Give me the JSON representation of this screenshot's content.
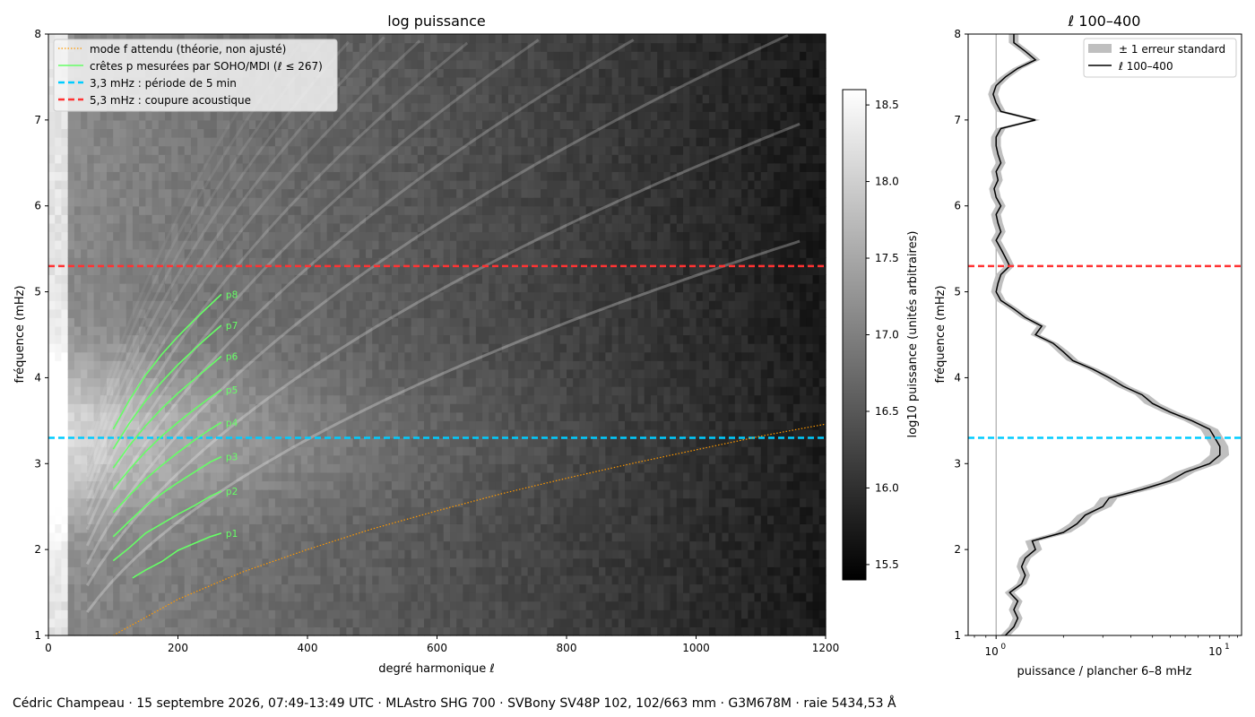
{
  "credit": "Cédric Champeau · 15 septembre 2026, 07:49-13:49 UTC · MLAstro SHG 700 · SVBony SV48P 102, 102/663 mm · G3M678M · raie 5434,53 Å",
  "colors": {
    "f_mode": "#ff9900",
    "p_ridges": "#66ff66",
    "line_5min": "#00ccff",
    "line_cutoff": "#ff3333",
    "band": "#bfbfbf",
    "profile": "#000000"
  },
  "chart_data": [
    {
      "type": "heatmap",
      "title": "log puissance",
      "xlabel": "degré harmonique ℓ",
      "ylabel": "fréquence (mHz)",
      "xlim": [
        0,
        1200
      ],
      "ylim": [
        1,
        8
      ],
      "xticks": [
        0,
        200,
        400,
        600,
        800,
        1000,
        1200
      ],
      "yticks": [
        1,
        2,
        3,
        4,
        5,
        6,
        7,
        8
      ],
      "colormap": "gray",
      "colorbar": {
        "label": "log10 puissance (unités arbitraires)",
        "range": [
          15.4,
          18.6
        ],
        "ticks": [
          15.5,
          16.0,
          16.5,
          17.0,
          17.5,
          18.0,
          18.5
        ]
      },
      "legend_position": "top-left",
      "legend": [
        "mode f attendu (théorie, non ajusté)",
        "crêtes p mesurées par SOHO/MDI (ℓ ≤ 267)",
        "3,3 mHz : période de 5 min",
        "5,3 mHz : coupure acoustique"
      ],
      "hlines": [
        {
          "y": 3.3,
          "key": "line_5min"
        },
        {
          "y": 5.3,
          "key": "line_cutoff"
        }
      ],
      "f_mode": {
        "x": [
          100,
          200,
          300,
          400,
          500,
          600,
          700,
          800,
          900,
          1000,
          1100,
          1200
        ],
        "y": [
          1.0,
          1.42,
          1.74,
          2.0,
          2.24,
          2.45,
          2.65,
          2.83,
          3.0,
          3.16,
          3.32,
          3.46
        ]
      },
      "p_ridges": [
        {
          "name": "p1",
          "x": [
            130,
            150,
            175,
            200,
            225,
            250,
            267
          ],
          "y": [
            1.67,
            1.76,
            1.86,
            1.99,
            2.07,
            2.15,
            2.19
          ]
        },
        {
          "name": "p2",
          "x": [
            100,
            125,
            150,
            175,
            200,
            225,
            250,
            267
          ],
          "y": [
            1.87,
            2.02,
            2.19,
            2.3,
            2.41,
            2.51,
            2.62,
            2.68
          ]
        },
        {
          "name": "p3",
          "x": [
            100,
            125,
            150,
            175,
            200,
            225,
            250,
            267
          ],
          "y": [
            2.15,
            2.33,
            2.51,
            2.65,
            2.78,
            2.9,
            3.02,
            3.08
          ]
        },
        {
          "name": "p4",
          "x": [
            100,
            125,
            150,
            175,
            200,
            225,
            250,
            267
          ],
          "y": [
            2.43,
            2.63,
            2.82,
            2.98,
            3.13,
            3.27,
            3.4,
            3.48
          ]
        },
        {
          "name": "p5",
          "x": [
            100,
            125,
            150,
            175,
            200,
            225,
            250,
            267
          ],
          "y": [
            2.7,
            2.93,
            3.14,
            3.32,
            3.48,
            3.63,
            3.77,
            3.86
          ]
        },
        {
          "name": "p6",
          "x": [
            100,
            125,
            150,
            175,
            200,
            225,
            250,
            267
          ],
          "y": [
            2.95,
            3.21,
            3.44,
            3.64,
            3.82,
            3.98,
            4.14,
            4.25
          ]
        },
        {
          "name": "p7",
          "x": [
            100,
            125,
            150,
            175,
            200,
            225,
            250,
            267
          ],
          "y": [
            3.17,
            3.47,
            3.73,
            3.95,
            4.15,
            4.33,
            4.5,
            4.61
          ]
        },
        {
          "name": "p8",
          "x": [
            100,
            125,
            150,
            175,
            200,
            225,
            250,
            267
          ],
          "y": [
            3.4,
            3.74,
            4.03,
            4.27,
            4.48,
            4.67,
            4.85,
            4.97
          ]
        }
      ]
    },
    {
      "type": "line",
      "title": "ℓ 100–400",
      "xlabel": "puissance / plancher 6–8 mHz",
      "ylabel": "fréquence (mHz)",
      "xscale": "log",
      "xlim": [
        0.75,
        12.5
      ],
      "ylim": [
        1,
        8
      ],
      "xticks": [
        {
          "value": 1,
          "base": "10",
          "exp": "0"
        },
        {
          "value": 10,
          "base": "10",
          "exp": "1"
        }
      ],
      "yticks": [
        1,
        2,
        3,
        4,
        5,
        6,
        7,
        8
      ],
      "vline": 1,
      "legend_position": "top-right",
      "legend": [
        "± 1 erreur standard",
        "ℓ 100–400"
      ],
      "hlines": [
        {
          "y": 3.3,
          "key": "line_5min"
        },
        {
          "y": 5.3,
          "key": "line_cutoff"
        }
      ],
      "series": [
        {
          "name": "ℓ 100–400",
          "y": [
            1.0,
            1.1,
            1.2,
            1.3,
            1.4,
            1.5,
            1.6,
            1.7,
            1.8,
            1.9,
            2.0,
            2.1,
            2.2,
            2.3,
            2.4,
            2.5,
            2.6,
            2.7,
            2.8,
            2.9,
            3.0,
            3.1,
            3.2,
            3.3,
            3.4,
            3.5,
            3.6,
            3.7,
            3.8,
            3.9,
            4.0,
            4.1,
            4.2,
            4.3,
            4.4,
            4.5,
            4.6,
            4.7,
            4.8,
            4.9,
            5.0,
            5.1,
            5.2,
            5.3,
            5.4,
            5.5,
            5.6,
            5.7,
            5.8,
            5.9,
            6.0,
            6.1,
            6.2,
            6.3,
            6.4,
            6.5,
            6.6,
            6.7,
            6.8,
            6.9,
            7.0,
            7.1,
            7.2,
            7.3,
            7.4,
            7.5,
            7.6,
            7.7,
            7.8,
            7.9,
            8.0
          ],
          "x": [
            1.1,
            1.2,
            1.25,
            1.2,
            1.25,
            1.15,
            1.3,
            1.35,
            1.3,
            1.35,
            1.5,
            1.45,
            2.0,
            2.3,
            2.5,
            3.0,
            3.2,
            4.5,
            6.0,
            7.0,
            9.0,
            10.0,
            10.0,
            9.5,
            9.0,
            7.5,
            6.0,
            5.0,
            4.5,
            3.7,
            3.2,
            2.7,
            2.2,
            2.0,
            1.8,
            1.5,
            1.6,
            1.35,
            1.2,
            1.05,
            1.0,
            1.02,
            1.05,
            1.15,
            1.1,
            1.05,
            1.0,
            1.05,
            1.02,
            1.0,
            1.05,
            1.0,
            0.98,
            1.02,
            1.0,
            1.05,
            1.02,
            1.0,
            1.0,
            1.05,
            1.5,
            1.05,
            1.0,
            0.97,
            1.0,
            1.1,
            1.25,
            1.5,
            1.35,
            1.2,
            1.2
          ],
          "err": [
            0.05,
            0.05,
            0.05,
            0.05,
            0.05,
            0.05,
            0.05,
            0.05,
            0.05,
            0.06,
            0.07,
            0.07,
            0.08,
            0.08,
            0.08,
            0.09,
            0.09,
            0.1,
            0.1,
            0.1,
            0.1,
            0.1,
            0.09,
            0.09,
            0.09,
            0.08,
            0.08,
            0.08,
            0.07,
            0.07,
            0.07,
            0.06,
            0.06,
            0.06,
            0.05,
            0.05,
            0.05,
            0.05,
            0.05,
            0.05,
            0.05,
            0.05,
            0.05,
            0.05,
            0.05,
            0.05,
            0.05,
            0.05,
            0.05,
            0.05,
            0.05,
            0.05,
            0.05,
            0.05,
            0.05,
            0.05,
            0.05,
            0.05,
            0.05,
            0.05,
            0.05,
            0.05,
            0.05,
            0.05,
            0.05,
            0.05,
            0.05,
            0.05,
            0.05,
            0.05,
            0.05
          ]
        }
      ]
    }
  ]
}
